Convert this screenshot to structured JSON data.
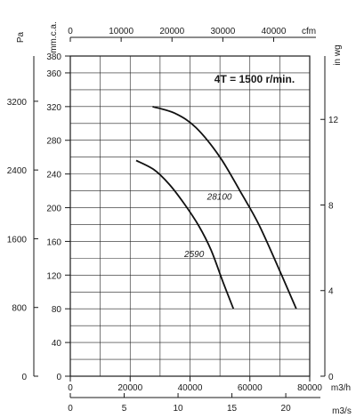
{
  "chart_data": {
    "type": "line",
    "title": "4T = 1500 r/min.",
    "grid": true,
    "axes": {
      "left_outer": {
        "unit": "Pa",
        "ticks": [
          0,
          800,
          1600,
          2400,
          3200
        ]
      },
      "left_main": {
        "unit": "mm.c.a.",
        "range": [
          0,
          380
        ],
        "ticks": [
          0,
          40,
          80,
          120,
          160,
          200,
          240,
          280,
          320,
          360,
          380
        ]
      },
      "right": {
        "unit": "in wg",
        "ticks": [
          0,
          4,
          8,
          12
        ]
      },
      "top": {
        "unit": "cfm",
        "ticks": [
          0,
          10000,
          20000,
          30000,
          40000
        ]
      },
      "bottom_main": {
        "unit": "m3/h",
        "range": [
          0,
          80000
        ],
        "ticks": [
          0,
          20000,
          40000,
          60000,
          80000
        ]
      },
      "bottom_outer": {
        "unit": "m3/s",
        "ticks": [
          0,
          5,
          10,
          15,
          20
        ]
      }
    },
    "series": [
      {
        "name": "28100",
        "x": [
          27500,
          35000,
          42000,
          50000,
          57000,
          63000,
          70000,
          75500
        ],
        "y": [
          320,
          312,
          295,
          260,
          218,
          180,
          125,
          80
        ]
      },
      {
        "name": "2590",
        "x": [
          22000,
          28000,
          33000,
          38000,
          43000,
          47000,
          51000,
          54500
        ],
        "y": [
          256,
          245,
          228,
          205,
          178,
          150,
          112,
          80
        ]
      }
    ]
  }
}
